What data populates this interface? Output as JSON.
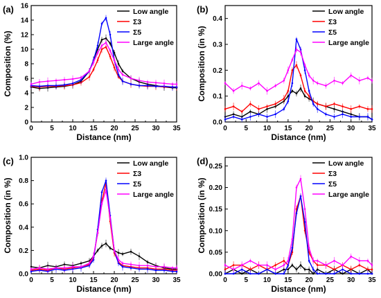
{
  "colors": {
    "low_angle": "#000000",
    "sigma3": "#ff0000",
    "sigma5": "#0000ff",
    "large_angle": "#ff00ff",
    "axis": "#000000"
  },
  "chart_data": [
    {
      "type": "line",
      "panel": "(a)",
      "xlabel": "Distance (nm)",
      "ylabel": "Composition (%)",
      "xlim": [
        0,
        35
      ],
      "ylim": [
        0,
        16
      ],
      "xticks": [
        "0",
        "5",
        "10",
        "15",
        "20",
        "25",
        "30",
        "35"
      ],
      "yticks": [
        "0",
        "2",
        "4",
        "6",
        "8",
        "10",
        "12",
        "14",
        "16"
      ],
      "yticks_values": [
        0,
        2,
        4,
        6,
        8,
        10,
        12,
        14,
        16
      ],
      "legend": "top-right",
      "series": [
        {
          "name": "Low angle",
          "color": "#000000",
          "x": [
            0,
            2,
            4,
            6,
            8,
            10,
            12,
            14,
            15,
            16,
            17,
            18,
            19,
            20,
            21,
            22,
            24,
            26,
            28,
            30,
            32,
            34,
            35
          ],
          "y": [
            4.8,
            4.6,
            4.7,
            4.8,
            4.9,
            5.1,
            5.6,
            7.0,
            8.5,
            10.0,
            11.3,
            11.5,
            10.8,
            9.5,
            8.0,
            7.0,
            6.0,
            5.5,
            5.2,
            5.0,
            4.8,
            4.7,
            4.7
          ]
        },
        {
          "name": "Σ3",
          "color": "#ff0000",
          "x": [
            0,
            2,
            4,
            6,
            8,
            10,
            12,
            14,
            15,
            16,
            17,
            18,
            19,
            20,
            21,
            22,
            24,
            26,
            28,
            30,
            32,
            34,
            35
          ],
          "y": [
            4.9,
            4.8,
            4.9,
            4.9,
            5.0,
            5.1,
            5.4,
            6.2,
            7.2,
            8.5,
            10.0,
            10.3,
            9.0,
            7.5,
            6.2,
            5.6,
            5.2,
            5.0,
            4.9,
            4.9,
            4.8,
            4.8,
            4.8
          ]
        },
        {
          "name": "Σ5",
          "color": "#0000ff",
          "x": [
            0,
            2,
            4,
            6,
            8,
            10,
            12,
            14,
            15,
            16,
            17,
            18,
            19,
            20,
            21,
            22,
            24,
            26,
            28,
            30,
            32,
            34,
            35
          ],
          "y": [
            5.0,
            4.9,
            5.0,
            5.0,
            5.1,
            5.3,
            5.8,
            7.0,
            8.5,
            10.5,
            13.5,
            14.3,
            12.0,
            8.5,
            6.5,
            5.6,
            5.2,
            5.0,
            5.0,
            4.9,
            4.9,
            4.8,
            4.8
          ]
        },
        {
          "name": "Large angle",
          "color": "#ff00ff",
          "x": [
            0,
            2,
            4,
            6,
            8,
            10,
            12,
            14,
            15,
            16,
            17,
            18,
            19,
            20,
            21,
            22,
            24,
            26,
            28,
            30,
            32,
            34,
            35
          ],
          "y": [
            5.2,
            5.5,
            5.6,
            5.7,
            5.8,
            5.9,
            6.1,
            7.0,
            8.2,
            9.5,
            10.5,
            10.9,
            9.8,
            8.5,
            7.2,
            6.5,
            6.0,
            5.7,
            5.5,
            5.4,
            5.3,
            5.2,
            5.2
          ]
        }
      ]
    },
    {
      "type": "line",
      "panel": "(b)",
      "xlabel": "Distance (nm)",
      "ylabel": "Composition (in %)",
      "xlim": [
        0,
        35
      ],
      "ylim": [
        0,
        0.45
      ],
      "xticks": [
        "0",
        "5",
        "10",
        "15",
        "20",
        "25",
        "30",
        "35"
      ],
      "yticks": [
        "0.0",
        "0.1",
        "0.2",
        "0.3",
        "0.4"
      ],
      "yticks_values": [
        0,
        0.1,
        0.2,
        0.3,
        0.4
      ],
      "legend": "top-right",
      "series": [
        {
          "name": "Low angle",
          "color": "#000000",
          "x": [
            0,
            2,
            4,
            6,
            8,
            10,
            12,
            14,
            15,
            16,
            17,
            18,
            19,
            20,
            21,
            22,
            24,
            26,
            28,
            30,
            32,
            34,
            35
          ],
          "y": [
            0.02,
            0.03,
            0.02,
            0.04,
            0.03,
            0.05,
            0.06,
            0.08,
            0.1,
            0.12,
            0.11,
            0.13,
            0.1,
            0.09,
            0.08,
            0.07,
            0.06,
            0.05,
            0.04,
            0.03,
            0.02,
            0.02,
            0.01
          ]
        },
        {
          "name": "Σ3",
          "color": "#ff0000",
          "x": [
            0,
            2,
            4,
            6,
            8,
            10,
            12,
            14,
            15,
            16,
            17,
            18,
            19,
            20,
            21,
            22,
            24,
            26,
            28,
            30,
            32,
            34,
            35
          ],
          "y": [
            0.05,
            0.06,
            0.04,
            0.07,
            0.05,
            0.06,
            0.07,
            0.09,
            0.12,
            0.2,
            0.22,
            0.18,
            0.12,
            0.1,
            0.08,
            0.07,
            0.06,
            0.07,
            0.06,
            0.05,
            0.06,
            0.05,
            0.05
          ]
        },
        {
          "name": "Σ5",
          "color": "#0000ff",
          "x": [
            0,
            2,
            4,
            6,
            8,
            10,
            12,
            14,
            15,
            16,
            17,
            18,
            19,
            20,
            21,
            22,
            24,
            26,
            28,
            30,
            32,
            34,
            35
          ],
          "y": [
            0.01,
            0.02,
            0.01,
            0.02,
            0.03,
            0.02,
            0.03,
            0.05,
            0.08,
            0.15,
            0.32,
            0.28,
            0.2,
            0.12,
            0.07,
            0.05,
            0.03,
            0.02,
            0.03,
            0.02,
            0.02,
            0.02,
            0.01
          ]
        },
        {
          "name": "Large angle",
          "color": "#ff00ff",
          "x": [
            0,
            2,
            4,
            6,
            8,
            10,
            12,
            14,
            15,
            16,
            17,
            18,
            19,
            20,
            21,
            22,
            24,
            26,
            28,
            30,
            32,
            34,
            35
          ],
          "y": [
            0.15,
            0.12,
            0.14,
            0.13,
            0.15,
            0.12,
            0.14,
            0.16,
            0.2,
            0.24,
            0.28,
            0.27,
            0.22,
            0.18,
            0.16,
            0.15,
            0.14,
            0.16,
            0.15,
            0.18,
            0.16,
            0.17,
            0.16
          ]
        }
      ]
    },
    {
      "type": "line",
      "panel": "(c)",
      "xlabel": "Distance (nm)",
      "ylabel": "Composition (in %)",
      "xlim": [
        0,
        35
      ],
      "ylim": [
        0,
        1.0
      ],
      "xticks": [
        "0",
        "5",
        "10",
        "15",
        "20",
        "25",
        "30",
        "35"
      ],
      "yticks": [
        "0.0",
        "0.2",
        "0.4",
        "0.6",
        "0.8",
        "1.0"
      ],
      "yticks_values": [
        0,
        0.2,
        0.4,
        0.6,
        0.8,
        1.0
      ],
      "legend": "top-right",
      "series": [
        {
          "name": "Low angle",
          "color": "#000000",
          "x": [
            0,
            2,
            4,
            6,
            8,
            10,
            12,
            14,
            15,
            16,
            17,
            18,
            19,
            20,
            21,
            22,
            24,
            26,
            28,
            30,
            32,
            34,
            35
          ],
          "y": [
            0.06,
            0.05,
            0.07,
            0.06,
            0.08,
            0.07,
            0.09,
            0.11,
            0.15,
            0.2,
            0.24,
            0.26,
            0.22,
            0.2,
            0.18,
            0.17,
            0.19,
            0.15,
            0.1,
            0.07,
            0.05,
            0.04,
            0.04
          ]
        },
        {
          "name": "Σ3",
          "color": "#ff0000",
          "x": [
            0,
            2,
            4,
            6,
            8,
            10,
            12,
            14,
            15,
            16,
            17,
            18,
            19,
            20,
            21,
            22,
            24,
            26,
            28,
            30,
            32,
            34,
            35
          ],
          "y": [
            0.03,
            0.04,
            0.03,
            0.05,
            0.04,
            0.05,
            0.06,
            0.08,
            0.14,
            0.35,
            0.62,
            0.78,
            0.45,
            0.18,
            0.1,
            0.07,
            0.06,
            0.05,
            0.05,
            0.04,
            0.04,
            0.03,
            0.03
          ]
        },
        {
          "name": "Σ5",
          "color": "#0000ff",
          "x": [
            0,
            2,
            4,
            6,
            8,
            10,
            12,
            14,
            15,
            16,
            17,
            18,
            19,
            20,
            21,
            22,
            24,
            26,
            28,
            30,
            32,
            34,
            35
          ],
          "y": [
            0.02,
            0.03,
            0.02,
            0.04,
            0.03,
            0.04,
            0.05,
            0.07,
            0.12,
            0.38,
            0.7,
            0.8,
            0.5,
            0.2,
            0.09,
            0.06,
            0.05,
            0.04,
            0.04,
            0.03,
            0.03,
            0.02,
            0.02
          ]
        },
        {
          "name": "Large angle",
          "color": "#ff00ff",
          "x": [
            0,
            2,
            4,
            6,
            8,
            10,
            12,
            14,
            15,
            16,
            17,
            18,
            19,
            20,
            21,
            22,
            24,
            26,
            28,
            30,
            32,
            34,
            35
          ],
          "y": [
            0.04,
            0.05,
            0.04,
            0.05,
            0.05,
            0.06,
            0.06,
            0.09,
            0.15,
            0.35,
            0.6,
            0.72,
            0.48,
            0.2,
            0.12,
            0.09,
            0.08,
            0.07,
            0.07,
            0.06,
            0.06,
            0.05,
            0.05
          ]
        }
      ]
    },
    {
      "type": "line",
      "panel": "(d)",
      "xlabel": "Distance (nm)",
      "ylabel": "Composition (in %)",
      "xlim": [
        0,
        35
      ],
      "ylim": [
        0,
        0.27
      ],
      "xticks": [
        "0",
        "5",
        "10",
        "15",
        "20",
        "25",
        "30",
        "35"
      ],
      "yticks": [
        "0.00",
        "0.05",
        "0.10",
        "0.15",
        "0.20",
        "0.25"
      ],
      "yticks_values": [
        0,
        0.05,
        0.1,
        0.15,
        0.2,
        0.25
      ],
      "legend": "top-right",
      "series": [
        {
          "name": "Low angle",
          "color": "#000000",
          "x": [
            0,
            2,
            4,
            6,
            8,
            10,
            12,
            14,
            15,
            16,
            17,
            18,
            19,
            20,
            21,
            22,
            24,
            26,
            28,
            30,
            32,
            34,
            35
          ],
          "y": [
            0.0,
            0.01,
            0.0,
            0.01,
            0.0,
            0.01,
            0.0,
            0.01,
            0.01,
            0.02,
            0.01,
            0.02,
            0.01,
            0.01,
            0.0,
            0.01,
            0.0,
            0.01,
            0.0,
            0.01,
            0.0,
            0.01,
            0.0
          ]
        },
        {
          "name": "Σ3",
          "color": "#ff0000",
          "x": [
            0,
            2,
            4,
            6,
            8,
            10,
            12,
            14,
            15,
            16,
            17,
            18,
            19,
            20,
            21,
            22,
            24,
            26,
            28,
            30,
            32,
            34,
            35
          ],
          "y": [
            0.01,
            0.02,
            0.02,
            0.01,
            0.02,
            0.01,
            0.02,
            0.03,
            0.02,
            0.05,
            0.15,
            0.18,
            0.1,
            0.05,
            0.03,
            0.02,
            0.02,
            0.01,
            0.02,
            0.01,
            0.02,
            0.01,
            0.01
          ]
        },
        {
          "name": "Σ5",
          "color": "#0000ff",
          "x": [
            0,
            2,
            4,
            6,
            8,
            10,
            12,
            14,
            15,
            16,
            17,
            18,
            19,
            20,
            21,
            22,
            24,
            26,
            28,
            30,
            32,
            34,
            35
          ],
          "y": [
            0.0,
            0.0,
            0.01,
            0.0,
            0.0,
            0.01,
            0.0,
            0.0,
            0.02,
            0.06,
            0.14,
            0.18,
            0.12,
            0.03,
            0.01,
            0.0,
            0.0,
            0.0,
            0.01,
            0.0,
            0.0,
            0.0,
            0.0
          ]
        },
        {
          "name": "Large angle",
          "color": "#ff00ff",
          "x": [
            0,
            2,
            4,
            6,
            8,
            10,
            12,
            14,
            15,
            16,
            17,
            18,
            19,
            20,
            21,
            22,
            24,
            26,
            28,
            30,
            32,
            34,
            35
          ],
          "y": [
            0.02,
            0.01,
            0.02,
            0.03,
            0.02,
            0.02,
            0.01,
            0.02,
            0.03,
            0.08,
            0.2,
            0.22,
            0.15,
            0.06,
            0.03,
            0.03,
            0.02,
            0.03,
            0.02,
            0.04,
            0.03,
            0.03,
            0.02
          ]
        }
      ]
    }
  ]
}
